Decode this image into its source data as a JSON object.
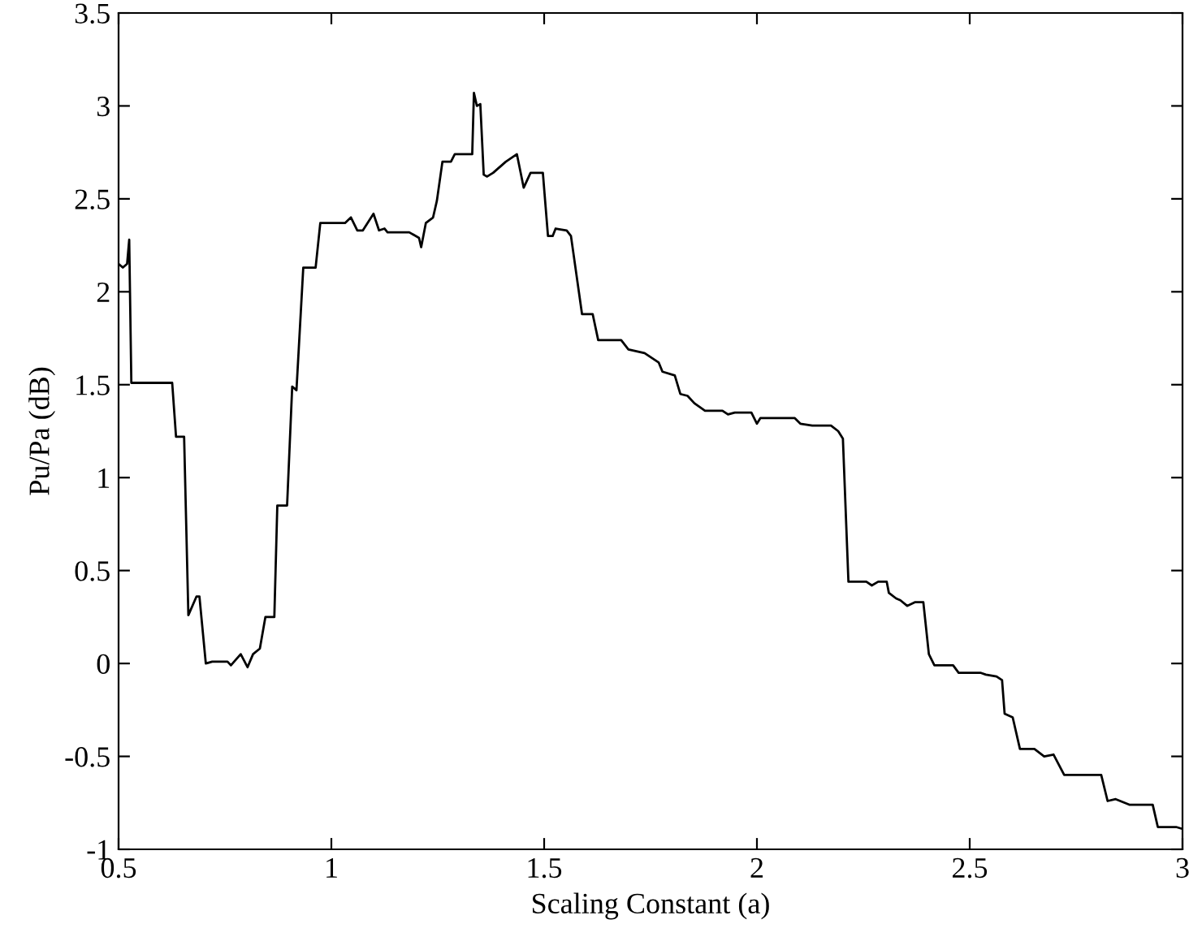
{
  "chart_data": {
    "type": "line",
    "xlabel": "Scaling Constant (a)",
    "ylabel": "Pu/Pa (dB)",
    "xlim": [
      0.5,
      3
    ],
    "ylim": [
      -1,
      3.5
    ],
    "xticks": [
      0.5,
      1,
      1.5,
      2,
      2.5,
      3
    ],
    "yticks": [
      -1,
      -0.5,
      0,
      0.5,
      1,
      1.5,
      2,
      2.5,
      3,
      3.5
    ],
    "grid": false,
    "legend": false,
    "marker": "none",
    "line_style": "solid",
    "series": [
      {
        "color": "#000000",
        "x": [
          0.5,
          0.51,
          0.52,
          0.525,
          0.53,
          0.626,
          0.635,
          0.654,
          0.664,
          0.683,
          0.69,
          0.705,
          0.72,
          0.756,
          0.764,
          0.787,
          0.803,
          0.816,
          0.832,
          0.845,
          0.866,
          0.873,
          0.896,
          0.908,
          0.918,
          0.934,
          0.963,
          0.974,
          1.032,
          1.046,
          1.061,
          1.074,
          1.099,
          1.112,
          1.125,
          1.132,
          1.183,
          1.206,
          1.211,
          1.222,
          1.239,
          1.248,
          1.261,
          1.281,
          1.29,
          1.331,
          1.335,
          1.342,
          1.35,
          1.358,
          1.366,
          1.38,
          1.41,
          1.436,
          1.452,
          1.468,
          1.497,
          1.509,
          1.52,
          1.527,
          1.553,
          1.563,
          1.589,
          1.614,
          1.627,
          1.681,
          1.698,
          1.736,
          1.769,
          1.778,
          1.807,
          1.82,
          1.837,
          1.853,
          1.878,
          1.919,
          1.932,
          1.948,
          1.987,
          2.0,
          2.008,
          2.089,
          2.102,
          2.13,
          2.174,
          2.191,
          2.202,
          2.215,
          2.257,
          2.27,
          2.285,
          2.305,
          2.31,
          2.327,
          2.337,
          2.353,
          2.372,
          2.391,
          2.404,
          2.417,
          2.461,
          2.474,
          2.525,
          2.538,
          2.563,
          2.576,
          2.582,
          2.601,
          2.618,
          2.652,
          2.675,
          2.697,
          2.722,
          2.809,
          2.824,
          2.843,
          2.875,
          2.93,
          2.942,
          2.985,
          3.0
        ],
        "values": [
          2.15,
          2.13,
          2.15,
          2.28,
          1.51,
          1.51,
          1.22,
          1.22,
          0.26,
          0.36,
          0.36,
          0.0,
          0.01,
          0.01,
          -0.01,
          0.05,
          -0.02,
          0.05,
          0.08,
          0.25,
          0.25,
          0.85,
          0.85,
          1.49,
          1.47,
          2.13,
          2.13,
          2.37,
          2.37,
          2.4,
          2.33,
          2.33,
          2.42,
          2.33,
          2.34,
          2.32,
          2.32,
          2.29,
          2.24,
          2.37,
          2.4,
          2.49,
          2.7,
          2.7,
          2.74,
          2.74,
          3.07,
          3.0,
          3.01,
          2.63,
          2.62,
          2.64,
          2.7,
          2.74,
          2.56,
          2.64,
          2.64,
          2.3,
          2.3,
          2.34,
          2.33,
          2.3,
          1.88,
          1.88,
          1.74,
          1.74,
          1.69,
          1.67,
          1.62,
          1.57,
          1.55,
          1.45,
          1.44,
          1.4,
          1.36,
          1.36,
          1.34,
          1.35,
          1.35,
          1.29,
          1.32,
          1.32,
          1.29,
          1.28,
          1.28,
          1.25,
          1.21,
          0.44,
          0.44,
          0.42,
          0.44,
          0.44,
          0.38,
          0.35,
          0.34,
          0.31,
          0.33,
          0.33,
          0.05,
          -0.01,
          -0.01,
          -0.05,
          -0.05,
          -0.06,
          -0.07,
          -0.09,
          -0.27,
          -0.29,
          -0.46,
          -0.46,
          -0.5,
          -0.49,
          -0.6,
          -0.6,
          -0.74,
          -0.73,
          -0.76,
          -0.76,
          -0.88,
          -0.88,
          -0.89
        ]
      }
    ]
  }
}
